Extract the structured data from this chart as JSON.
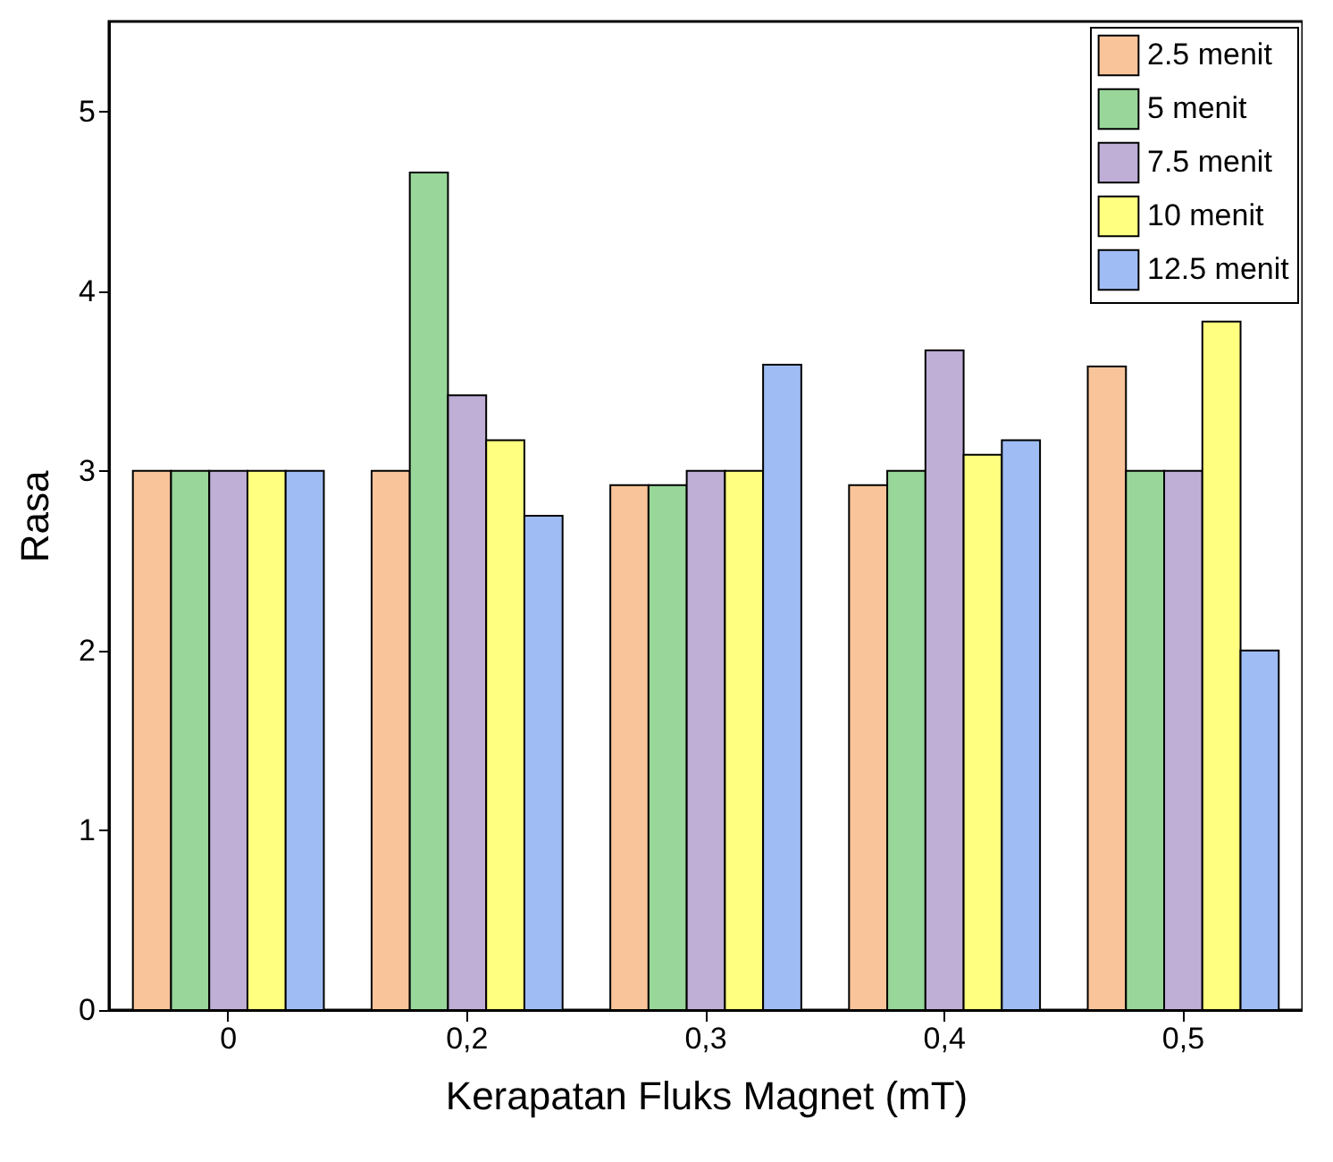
{
  "chart_data": {
    "type": "bar",
    "xlabel": "Kerapatan Fluks Magnet (mT)",
    "ylabel": "Rasa",
    "categories": [
      "0",
      "0,2",
      "0,3",
      "0,4",
      "0,5"
    ],
    "series": [
      {
        "name": "2.5 menit",
        "color": "#f9c49a",
        "values": [
          3,
          3,
          2.92,
          2.92,
          3.58
        ]
      },
      {
        "name": "5 menit",
        "color": "#98d69a",
        "values": [
          3,
          4.66,
          2.92,
          3,
          3
        ]
      },
      {
        "name": "7.5 menit",
        "color": "#bfaed6",
        "values": [
          3,
          3.42,
          3,
          3.67,
          3
        ]
      },
      {
        "name": "10 menit",
        "color": "#ffff80",
        "values": [
          3,
          3.17,
          3,
          3.09,
          3.83
        ]
      },
      {
        "name": "12.5 menit",
        "color": "#9fbcf4",
        "values": [
          3,
          2.75,
          3.59,
          3.17,
          2
        ]
      }
    ],
    "ylim": [
      0,
      5.5
    ],
    "yticks": [
      0,
      1,
      2,
      3,
      4,
      5
    ],
    "grid": false,
    "legend": "top right"
  }
}
